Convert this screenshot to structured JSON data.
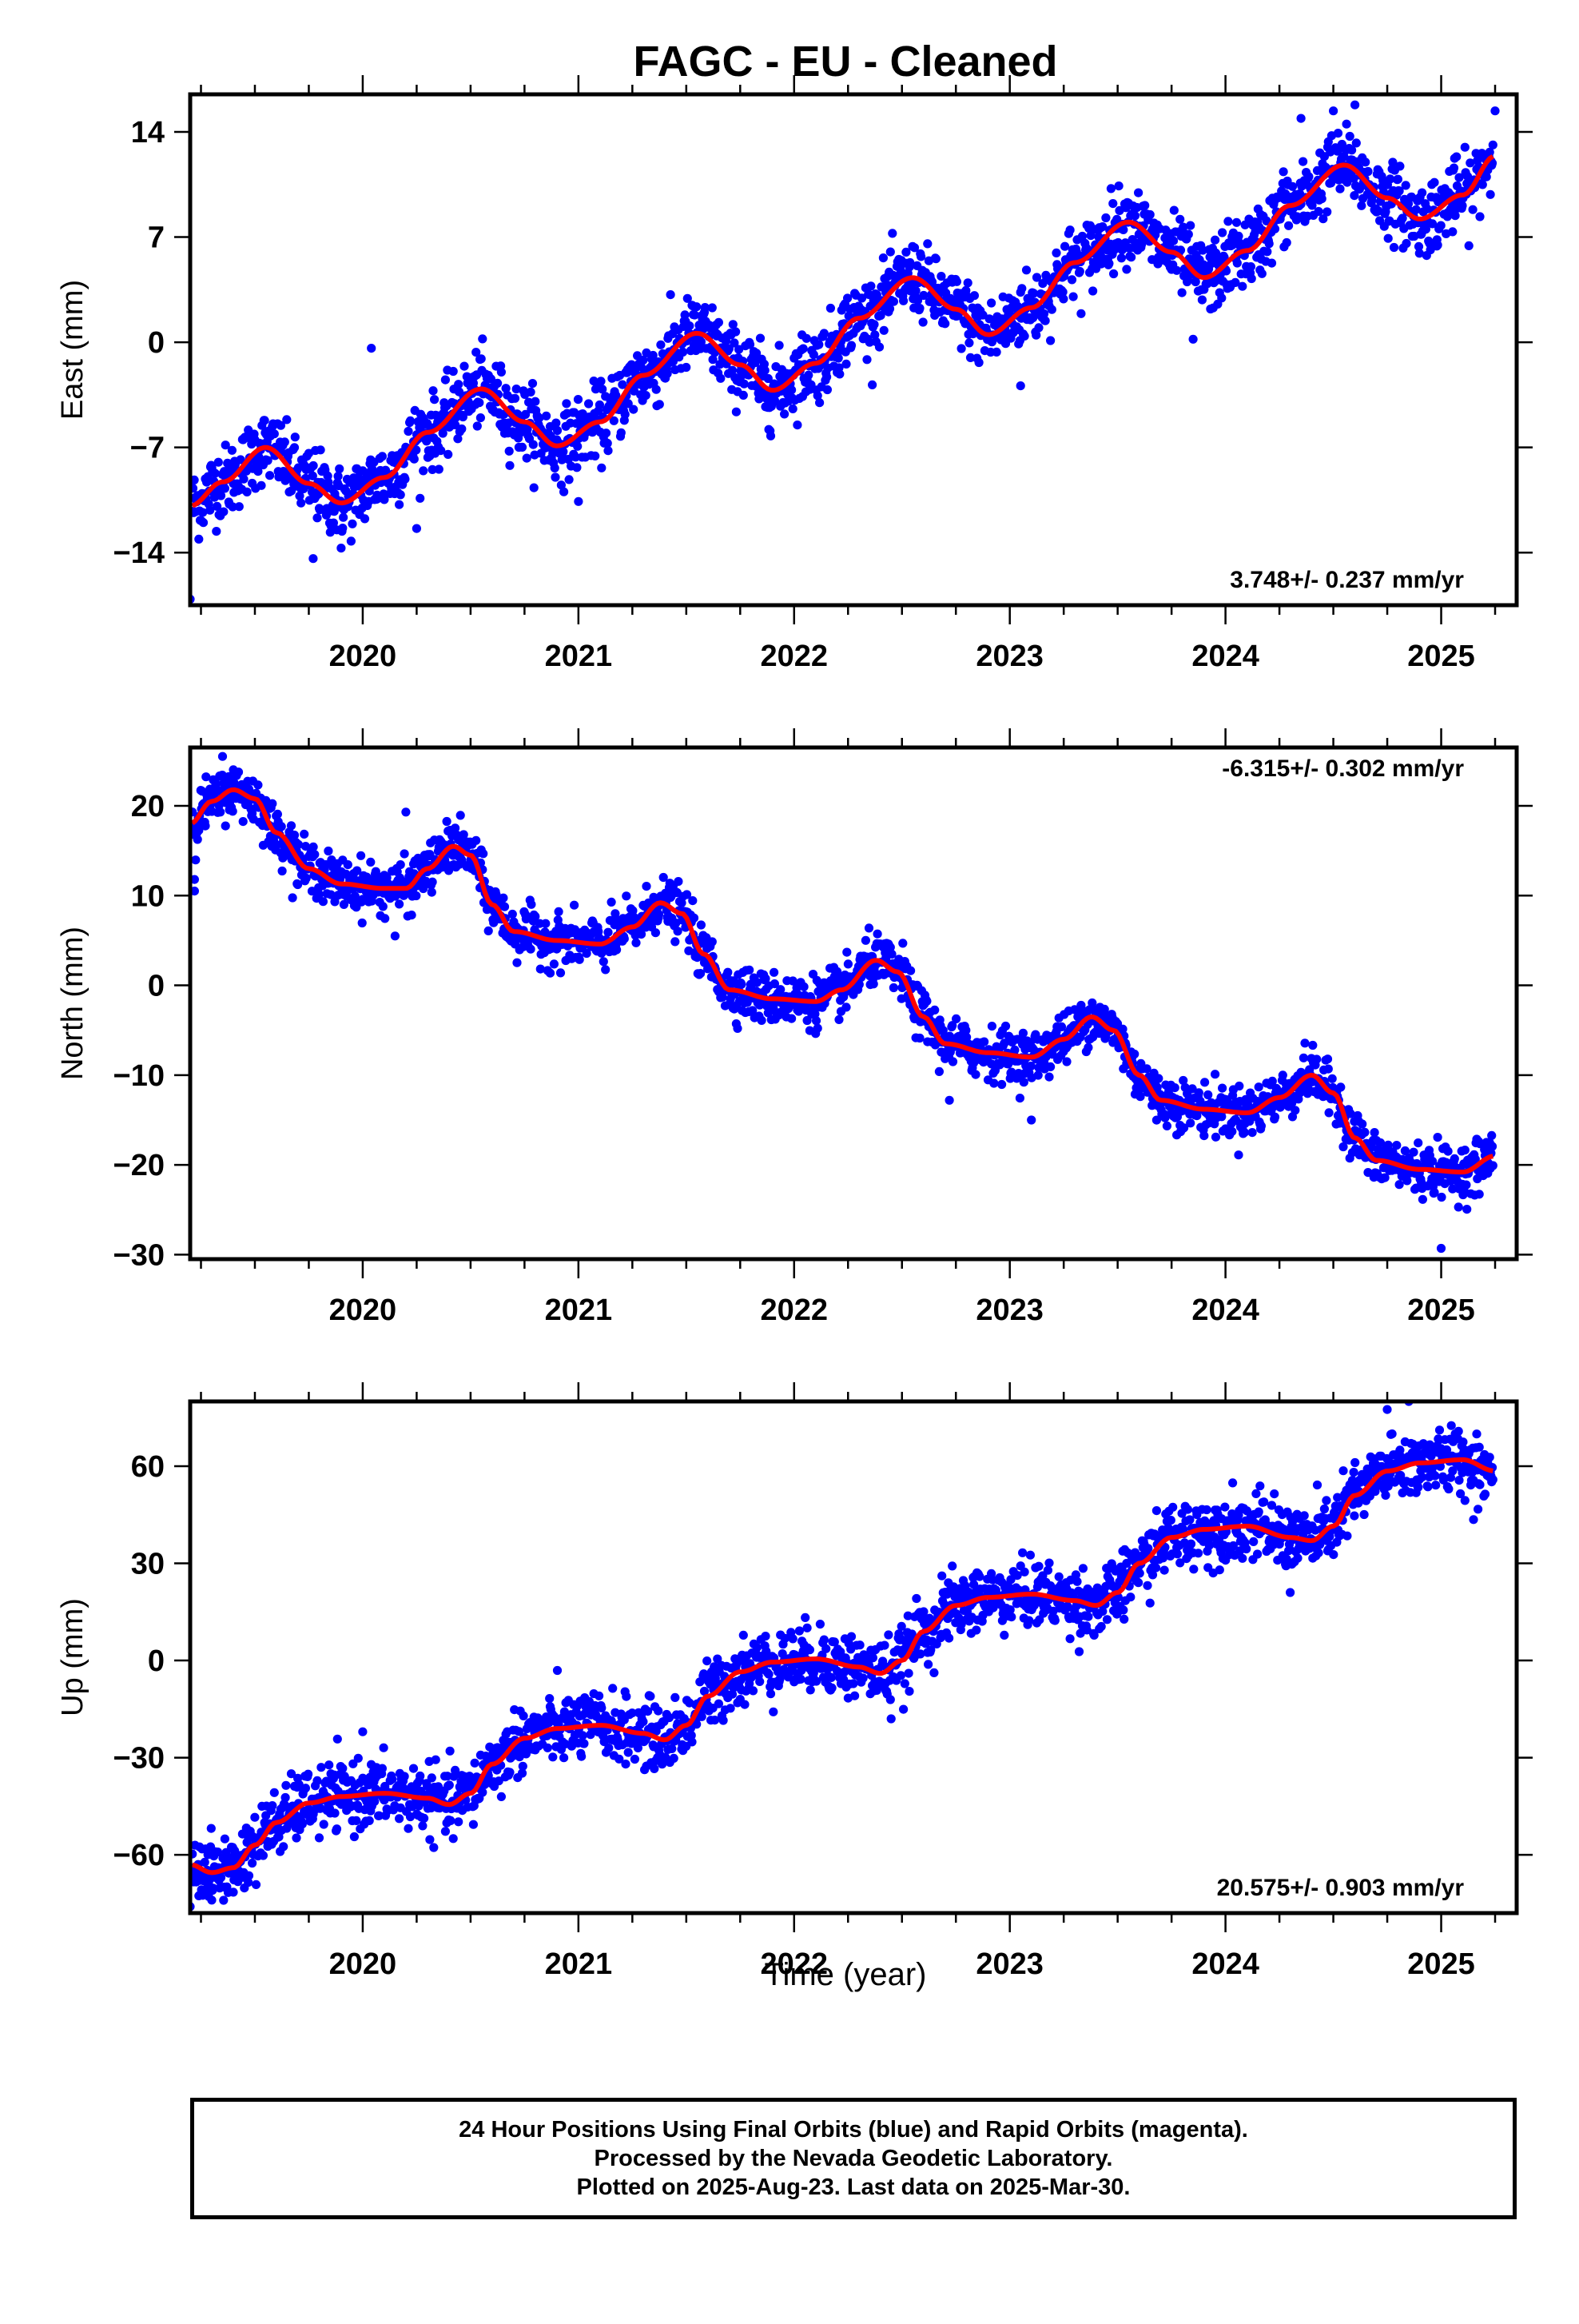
{
  "title": "FAGC  - EU - Cleaned",
  "xlabel": "Time (year)",
  "footer": {
    "line1": "24 Hour Positions Using Final Orbits (blue) and Rapid Orbits (magenta).",
    "line2": "Processed by the Nevada Geodetic Laboratory.",
    "line3": "Plotted on 2025-Aug-23. Last data on 2025-Mar-30."
  },
  "colors": {
    "data_points": "#0000ff",
    "fit_curve": "#ff0000",
    "axes": "#000000"
  },
  "chart_data": [
    {
      "type": "scatter",
      "name": "East",
      "ylabel": "East (mm)",
      "rate": "3.748+/- 0.237 mm/yr",
      "rate_position": "bottom-right",
      "xlim": [
        2019.2,
        2025.35
      ],
      "ylim": [
        -17.5,
        16.5
      ],
      "x_ticks": [
        2020,
        2021,
        2022,
        2023,
        2024,
        2025
      ],
      "y_ticks": [
        14,
        7,
        0,
        -7,
        -14
      ],
      "y_tick_labels": [
        "14",
        "7",
        "0",
        "−7",
        "−14"
      ],
      "trend": {
        "offset": -6.37,
        "rate": 3.748,
        "t0": 2019.25
      },
      "seasonal": {
        "amplitude": 2.4,
        "peak_year_fraction": 0.55
      },
      "fit_curve": [
        [
          2019.2,
          -10.9
        ],
        [
          2019.35,
          -9.3
        ],
        [
          2019.55,
          -7.0
        ],
        [
          2019.75,
          -9.4
        ],
        [
          2019.9,
          -10.7
        ],
        [
          2020.1,
          -9.0
        ],
        [
          2020.3,
          -6.0
        ],
        [
          2020.55,
          -3.1
        ],
        [
          2020.75,
          -5.3
        ],
        [
          2020.9,
          -6.9
        ],
        [
          2021.1,
          -5.3
        ],
        [
          2021.3,
          -2.2
        ],
        [
          2021.55,
          0.6
        ],
        [
          2021.75,
          -1.5
        ],
        [
          2021.9,
          -3.2
        ],
        [
          2022.1,
          -1.4
        ],
        [
          2022.3,
          1.6
        ],
        [
          2022.55,
          4.3
        ],
        [
          2022.75,
          2.2
        ],
        [
          2022.9,
          0.5
        ],
        [
          2023.1,
          2.3
        ],
        [
          2023.3,
          5.3
        ],
        [
          2023.55,
          8.0
        ],
        [
          2023.75,
          6.0
        ],
        [
          2023.9,
          4.3
        ],
        [
          2024.1,
          6.1
        ],
        [
          2024.3,
          9.1
        ],
        [
          2024.55,
          11.8
        ],
        [
          2024.75,
          9.6
        ],
        [
          2024.9,
          8.2
        ],
        [
          2025.1,
          9.8
        ],
        [
          2025.25,
          12.4
        ]
      ],
      "outliers": [
        [
          2019.2,
          -17.1
        ],
        [
          2019.77,
          -14.4
        ],
        [
          2019.9,
          -13.7
        ],
        [
          2020.04,
          -0.4
        ],
        [
          2020.25,
          -12.4
        ],
        [
          2021.0,
          -10.6
        ],
        [
          2023.05,
          -2.9
        ],
        [
          2023.85,
          0.2
        ],
        [
          2024.35,
          14.9
        ],
        [
          2024.5,
          15.4
        ],
        [
          2024.6,
          15.8
        ],
        [
          2024.98,
          6.4
        ],
        [
          2025.25,
          15.4
        ]
      ],
      "scatter_sigma": 1.2,
      "n_points": 2000
    },
    {
      "type": "scatter",
      "name": "North",
      "ylabel": "North (mm)",
      "rate": "-6.315+/- 0.302 mm/yr",
      "rate_position": "top-right",
      "xlim": [
        2019.2,
        2025.35
      ],
      "ylim": [
        -30.5,
        26.5
      ],
      "x_ticks": [
        2020,
        2021,
        2022,
        2023,
        2024,
        2025
      ],
      "y_ticks": [
        20,
        10,
        0,
        -10,
        -20,
        -30
      ],
      "y_tick_labels": [
        "20",
        "10",
        "0",
        "−10",
        "−20",
        "−30"
      ],
      "fit_curve": [
        [
          2019.2,
          18.0
        ],
        [
          2019.3,
          20.5
        ],
        [
          2019.4,
          21.8
        ],
        [
          2019.5,
          20.8
        ],
        [
          2019.6,
          17.0
        ],
        [
          2019.75,
          13.0
        ],
        [
          2019.9,
          11.3
        ],
        [
          2020.1,
          10.8
        ],
        [
          2020.2,
          10.8
        ],
        [
          2020.3,
          13.0
        ],
        [
          2020.42,
          15.5
        ],
        [
          2020.5,
          14.5
        ],
        [
          2020.6,
          9.0
        ],
        [
          2020.7,
          6.0
        ],
        [
          2020.9,
          5.0
        ],
        [
          2021.1,
          4.6
        ],
        [
          2021.25,
          6.5
        ],
        [
          2021.38,
          9.2
        ],
        [
          2021.48,
          8.0
        ],
        [
          2021.58,
          3.5
        ],
        [
          2021.7,
          -0.5
        ],
        [
          2021.9,
          -1.5
        ],
        [
          2022.1,
          -1.8
        ],
        [
          2022.22,
          -0.5
        ],
        [
          2022.38,
          2.8
        ],
        [
          2022.48,
          1.5
        ],
        [
          2022.6,
          -3.5
        ],
        [
          2022.7,
          -6.5
        ],
        [
          2022.9,
          -7.5
        ],
        [
          2023.1,
          -8.0
        ],
        [
          2023.25,
          -6.0
        ],
        [
          2023.38,
          -3.5
        ],
        [
          2023.48,
          -5.0
        ],
        [
          2023.6,
          -10.0
        ],
        [
          2023.7,
          -12.8
        ],
        [
          2023.9,
          -13.8
        ],
        [
          2024.1,
          -14.2
        ],
        [
          2024.25,
          -12.5
        ],
        [
          2024.4,
          -10.0
        ],
        [
          2024.5,
          -12.0
        ],
        [
          2024.6,
          -17.0
        ],
        [
          2024.7,
          -19.5
        ],
        [
          2024.9,
          -20.5
        ],
        [
          2025.1,
          -20.8
        ],
        [
          2025.25,
          -19.0
        ]
      ],
      "outliers": [
        [
          2019.22,
          10.5
        ],
        [
          2019.22,
          11.8
        ],
        [
          2019.35,
          25.5
        ],
        [
          2020.2,
          19.3
        ],
        [
          2020.15,
          5.5
        ],
        [
          2022.72,
          -12.8
        ],
        [
          2023.1,
          -15.0
        ],
        [
          2025.0,
          -29.3
        ]
      ],
      "scatter_sigma": 1.4,
      "n_points": 2000
    },
    {
      "type": "scatter",
      "name": "Up",
      "ylabel": "Up (mm)",
      "rate": "20.575+/- 0.903 mm/yr",
      "rate_position": "bottom-right",
      "xlim": [
        2019.2,
        2025.35
      ],
      "ylim": [
        -78,
        80
      ],
      "x_ticks": [
        2020,
        2021,
        2022,
        2023,
        2024,
        2025
      ],
      "y_ticks": [
        60,
        30,
        0,
        -30,
        -60
      ],
      "y_tick_labels": [
        "60",
        "30",
        "0",
        "−30",
        "−60"
      ],
      "fit_curve": [
        [
          2019.2,
          -63.0
        ],
        [
          2019.3,
          -65.5
        ],
        [
          2019.4,
          -64.0
        ],
        [
          2019.5,
          -57.0
        ],
        [
          2019.6,
          -50.0
        ],
        [
          2019.75,
          -44.0
        ],
        [
          2019.9,
          -42.0
        ],
        [
          2020.1,
          -41.0
        ],
        [
          2020.3,
          -42.5
        ],
        [
          2020.4,
          -44.5
        ],
        [
          2020.5,
          -41.0
        ],
        [
          2020.6,
          -32.0
        ],
        [
          2020.75,
          -24.0
        ],
        [
          2020.9,
          -21.0
        ],
        [
          2021.1,
          -20.0
        ],
        [
          2021.3,
          -22.5
        ],
        [
          2021.4,
          -24.5
        ],
        [
          2021.5,
          -20.0
        ],
        [
          2021.6,
          -11.0
        ],
        [
          2021.75,
          -3.5
        ],
        [
          2021.9,
          -0.5
        ],
        [
          2022.1,
          0.5
        ],
        [
          2022.3,
          -2.0
        ],
        [
          2022.4,
          -4.0
        ],
        [
          2022.5,
          0.0
        ],
        [
          2022.6,
          9.0
        ],
        [
          2022.75,
          17.0
        ],
        [
          2022.9,
          19.5
        ],
        [
          2023.1,
          20.5
        ],
        [
          2023.3,
          18.5
        ],
        [
          2023.4,
          17.0
        ],
        [
          2023.5,
          21.0
        ],
        [
          2023.6,
          30.0
        ],
        [
          2023.75,
          38.0
        ],
        [
          2023.9,
          40.5
        ],
        [
          2024.1,
          41.5
        ],
        [
          2024.3,
          38.0
        ],
        [
          2024.4,
          37.0
        ],
        [
          2024.5,
          41.5
        ],
        [
          2024.6,
          51.0
        ],
        [
          2024.75,
          58.5
        ],
        [
          2024.9,
          61.0
        ],
        [
          2025.1,
          62.0
        ],
        [
          2025.25,
          58.5
        ]
      ],
      "outliers": [
        [
          2019.2,
          -76.0
        ],
        [
          2019.3,
          -74.0
        ],
        [
          2020.0,
          -22.0
        ],
        [
          2022.45,
          -18.0
        ],
        [
          2024.3,
          21.0
        ],
        [
          2024.75,
          77.5
        ],
        [
          2024.85,
          80.0
        ],
        [
          2025.15,
          43.5
        ]
      ],
      "scatter_sigma": 5.0,
      "n_points": 2000
    }
  ]
}
